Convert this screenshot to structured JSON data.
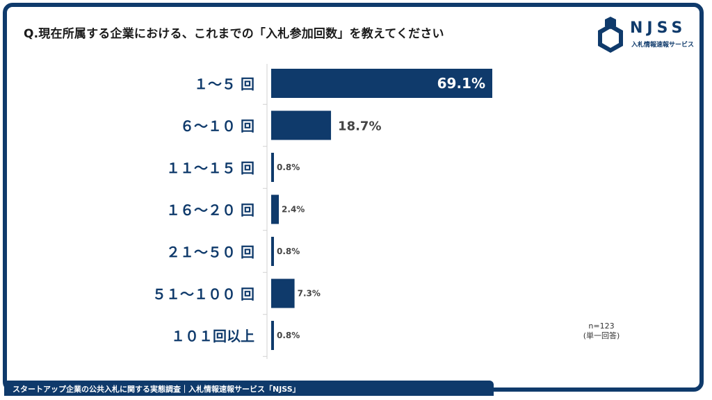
{
  "title": "Q.現在所属する企業における、これまでの「入札参加回数」を教えてください",
  "logo": {
    "name": "NJSS",
    "sub": "入札情報速報サービス"
  },
  "note": {
    "n": "n=123",
    "type": "(単一回答)"
  },
  "footer": "スタートアップ企業の公共入札に関する実態調査｜入札情報速報サービス「NJSS」",
  "colors": {
    "bar": "#0f3a6b",
    "frame": "#0f3a6b",
    "label_inside": "#ffffff",
    "label_outside": "#444444"
  },
  "chart_data": {
    "type": "bar",
    "orientation": "horizontal",
    "categories": [
      "１～５ 回",
      "６～１０ 回",
      "１１～１５ 回",
      "１６～２０ 回",
      "２１～５０ 回",
      "５１～１００ 回",
      "１０１回以上"
    ],
    "values": [
      69.1,
      18.7,
      0.8,
      2.4,
      0.8,
      7.3,
      0.8
    ],
    "value_labels": [
      "69.1%",
      "18.7%",
      "0.8%",
      "2.4%",
      "0.8%",
      "7.3%",
      "0.8%"
    ],
    "unit": "%",
    "xlim": [
      0,
      100
    ],
    "grid": false
  }
}
